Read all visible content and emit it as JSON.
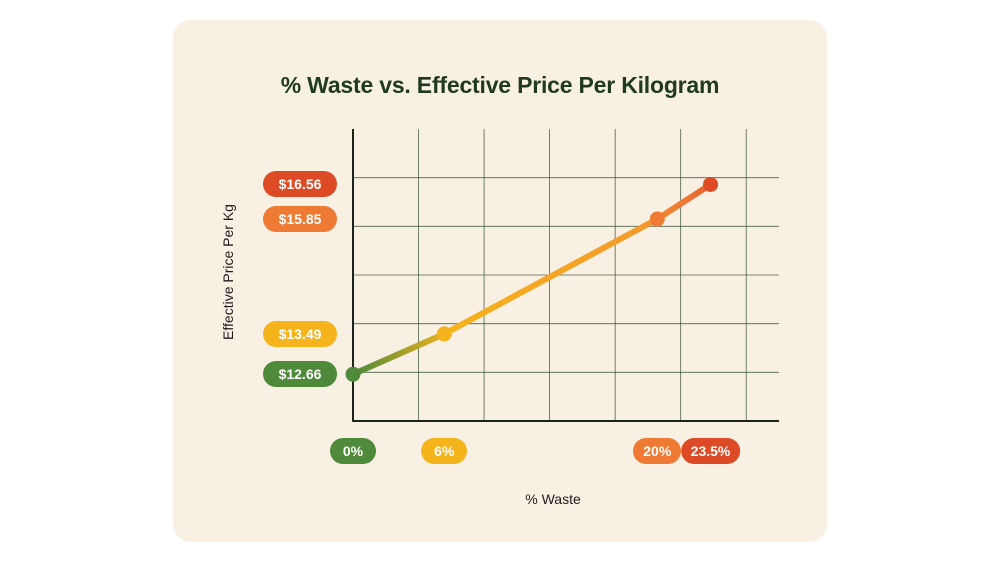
{
  "chart_data": {
    "type": "line",
    "title": "% Waste vs. Effective Price Per Kilogram",
    "xlabel": "% Waste",
    "ylabel": "Effective Price Per Kg",
    "xlim": [
      0,
      28
    ],
    "ylim": [
      11.7,
      17.7
    ],
    "grid": true,
    "series": [
      {
        "name": "Effective Price Per Kg",
        "points": [
          {
            "x": 0,
            "y": 12.66,
            "x_label": "0%",
            "y_label": "$12.66",
            "color": "#4e8a3a"
          },
          {
            "x": 6,
            "y": 13.49,
            "x_label": "6%",
            "y_label": "$13.49",
            "color": "#f5b31c"
          },
          {
            "x": 20,
            "y": 15.85,
            "x_label": "20%",
            "y_label": "$15.85",
            "color": "#ee7a33"
          },
          {
            "x": 23.5,
            "y": 16.56,
            "x_label": "23.5%",
            "y_label": "$16.56",
            "color": "#dc4b26"
          }
        ]
      }
    ]
  },
  "colors": {
    "background": "#ffffff",
    "card": "#f8f0e3",
    "grid": "#2f4a2d",
    "axis": "#1a2418",
    "title": "#1f3a1c"
  }
}
